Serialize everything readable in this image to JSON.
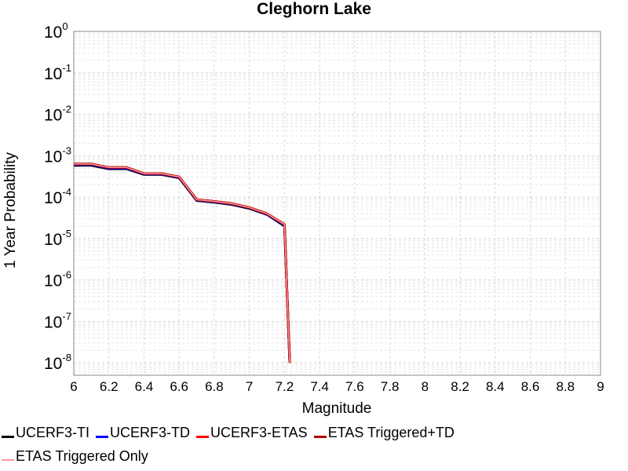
{
  "chart_data": {
    "type": "line",
    "title": "Cleghorn Lake",
    "xlabel": "Magnitude",
    "ylabel": "1 Year Probability",
    "xlim": [
      6,
      9
    ],
    "ylim_log10": [
      -8.3,
      0
    ],
    "y_scale": "log",
    "grid": true,
    "legend_position": "bottom",
    "x_ticks": [
      "6",
      "6.2",
      "6.4",
      "6.6",
      "6.8",
      "7",
      "7.2",
      "7.4",
      "7.6",
      "7.8",
      "8",
      "8.2",
      "8.4",
      "8.6",
      "8.8",
      "9"
    ],
    "y_ticks": [
      {
        "base": "10",
        "exp": "0"
      },
      {
        "base": "10",
        "exp": "-1"
      },
      {
        "base": "10",
        "exp": "-2"
      },
      {
        "base": "10",
        "exp": "-3"
      },
      {
        "base": "10",
        "exp": "-4"
      },
      {
        "base": "10",
        "exp": "-5"
      },
      {
        "base": "10",
        "exp": "-6"
      },
      {
        "base": "10",
        "exp": "-7"
      },
      {
        "base": "10",
        "exp": "-8"
      }
    ],
    "series": [
      {
        "name": "UCERF3-TI",
        "color": "#000000",
        "width": 3,
        "x": [
          6.0,
          6.1,
          6.2,
          6.3,
          6.4,
          6.5,
          6.6,
          6.7,
          6.8,
          6.9,
          7.0,
          7.1,
          7.2,
          7.23
        ],
        "y": [
          0.00058,
          0.00058,
          0.00048,
          0.00048,
          0.00035,
          0.00035,
          0.00029,
          8.2e-05,
          7.5e-05,
          6.6e-05,
          5.3e-05,
          3.8e-05,
          2e-05,
          1e-08
        ]
      },
      {
        "name": "UCERF3-TD",
        "color": "#0000ff",
        "width": 3,
        "x": [
          6.0,
          6.1,
          6.2,
          6.3,
          6.4,
          6.5,
          6.6,
          6.7,
          6.8,
          6.9,
          7.0,
          7.1,
          7.2,
          7.23
        ],
        "y": [
          0.00061,
          0.00061,
          0.0005,
          0.0005,
          0.00036,
          0.00036,
          0.0003,
          8.5e-05,
          7.7e-05,
          6.8e-05,
          5.5e-05,
          3.9e-05,
          2.1e-05,
          1e-08
        ]
      },
      {
        "name": "UCERF3-ETAS",
        "color": "#ff0000",
        "width": 3,
        "x": [
          6.0,
          6.1,
          6.2,
          6.3,
          6.4,
          6.5,
          6.6,
          6.7,
          6.8,
          6.9,
          7.0,
          7.1,
          7.2,
          7.23
        ],
        "y": [
          0.00063,
          0.00063,
          0.00052,
          0.00052,
          0.00037,
          0.00037,
          0.00031,
          8.7e-05,
          7.9e-05,
          7e-05,
          5.6e-05,
          4e-05,
          2.2e-05,
          1e-08
        ]
      },
      {
        "name": "ETAS Triggered+TD",
        "color": "#b00000",
        "width": 3,
        "x": [
          6.0,
          6.1,
          6.2,
          6.3,
          6.4,
          6.5,
          6.6,
          6.7,
          6.8,
          6.9,
          7.0,
          7.1,
          7.2,
          7.23
        ],
        "y": [
          0.00063,
          0.00063,
          0.00052,
          0.00052,
          0.00037,
          0.00037,
          0.00031,
          8.7e-05,
          7.9e-05,
          7e-05,
          5.6e-05,
          4e-05,
          2.2e-05,
          1e-08
        ]
      },
      {
        "name": "ETAS Triggered Only",
        "color": "#ff9999",
        "width": 1.5,
        "x": [
          6.0,
          6.1,
          6.2,
          6.3,
          6.4,
          6.5,
          6.6,
          6.7,
          6.8,
          6.9,
          7.0,
          7.1,
          7.2,
          7.23
        ],
        "y": [
          0.00063,
          0.00063,
          0.00052,
          0.00052,
          0.00037,
          0.00037,
          0.00031,
          8.7e-05,
          7.9e-05,
          7e-05,
          5.6e-05,
          4e-05,
          2.2e-05,
          1e-08
        ]
      }
    ]
  }
}
